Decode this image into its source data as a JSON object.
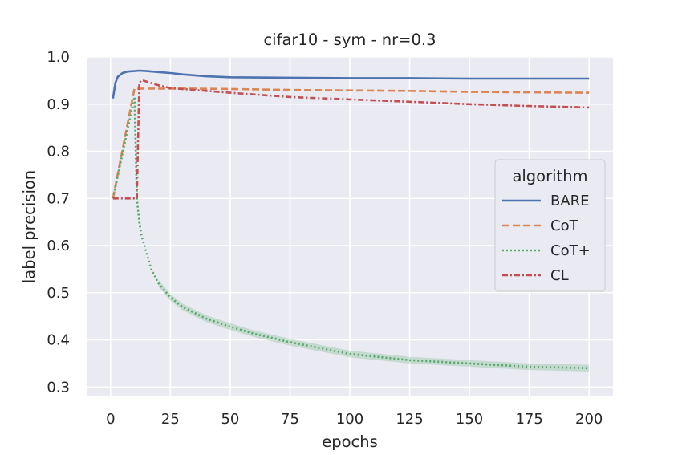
{
  "chart_data": {
    "type": "line",
    "title": "cifar10 - sym - nr=0.3",
    "xlabel": "epochs",
    "ylabel": "label precision",
    "xlim": [
      -10,
      210
    ],
    "ylim": [
      0.28,
      1.0
    ],
    "xticks": [
      0,
      25,
      50,
      75,
      100,
      125,
      150,
      175,
      200
    ],
    "yticks": [
      0.3,
      0.4,
      0.5,
      0.6,
      0.7,
      0.8,
      0.9,
      1.0
    ],
    "xtick_labels": [
      "0",
      "25",
      "50",
      "75",
      "100",
      "125",
      "150",
      "175",
      "200"
    ],
    "ytick_labels": [
      "0.3",
      "0.4",
      "0.5",
      "0.6",
      "0.7",
      "0.8",
      "0.9",
      "1.0"
    ],
    "grid": true,
    "background": "#eaeaf2",
    "legend": {
      "title": "algorithm",
      "placement": "center-right"
    },
    "series": [
      {
        "name": "BARE",
        "color": "#4c72b0",
        "dash": "solid",
        "x": [
          1,
          2,
          3,
          5,
          7,
          10,
          12,
          15,
          20,
          25,
          30,
          40,
          50,
          75,
          100,
          125,
          150,
          175,
          200
        ],
        "y": [
          0.912,
          0.945,
          0.958,
          0.966,
          0.969,
          0.97,
          0.971,
          0.97,
          0.968,
          0.966,
          0.963,
          0.959,
          0.957,
          0.956,
          0.955,
          0.955,
          0.954,
          0.954,
          0.954
        ]
      },
      {
        "name": "CoT",
        "color": "#dd8452",
        "dash": "dashed",
        "x": [
          1,
          10,
          12,
          20,
          30,
          50,
          75,
          100,
          125,
          150,
          175,
          200
        ],
        "y": [
          0.7,
          0.933,
          0.933,
          0.933,
          0.933,
          0.932,
          0.93,
          0.929,
          0.928,
          0.926,
          0.925,
          0.924
        ]
      },
      {
        "name": "CoT+",
        "color": "#55a868",
        "dash": "dotted",
        "x": [
          1,
          10,
          11,
          12,
          13,
          15,
          17,
          20,
          25,
          30,
          40,
          50,
          60,
          75,
          100,
          125,
          150,
          175,
          200
        ],
        "y": [
          0.7,
          0.915,
          0.7,
          0.65,
          0.62,
          0.585,
          0.55,
          0.52,
          0.49,
          0.47,
          0.445,
          0.428,
          0.413,
          0.395,
          0.37,
          0.357,
          0.35,
          0.343,
          0.34
        ]
      },
      {
        "name": "CL",
        "color": "#c44e52",
        "dash": "dashdot",
        "x": [
          1,
          11,
          12,
          13,
          15,
          20,
          25,
          50,
          75,
          100,
          125,
          150,
          175,
          200
        ],
        "y": [
          0.7,
          0.7,
          0.945,
          0.951,
          0.948,
          0.94,
          0.934,
          0.924,
          0.915,
          0.91,
          0.905,
          0.9,
          0.896,
          0.893
        ]
      }
    ]
  }
}
